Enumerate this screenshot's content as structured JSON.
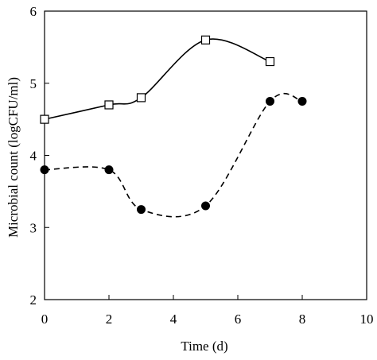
{
  "chart_data": {
    "type": "line",
    "xlabel": "Time (d)",
    "ylabel": "Microbial count (logCFU/ml)",
    "xlim": [
      0,
      10
    ],
    "ylim": [
      2,
      6
    ],
    "xticks": [
      0,
      2,
      4,
      6,
      8,
      10
    ],
    "yticks": [
      2,
      3,
      4,
      5,
      6
    ],
    "x_tick_labels": [
      "0",
      "2",
      "4",
      "6",
      "8",
      "10"
    ],
    "y_tick_labels": [
      "2",
      "3",
      "4",
      "5",
      "6"
    ],
    "grid": false,
    "series": [
      {
        "marker": "open-square",
        "line": "solid",
        "color": "#000000",
        "x": [
          0,
          2,
          3,
          5,
          7
        ],
        "y": [
          4.5,
          4.7,
          4.8,
          5.6,
          5.3
        ]
      },
      {
        "marker": "filled-circle",
        "line": "dashed",
        "color": "#000000",
        "x": [
          0,
          2,
          3,
          5,
          7,
          8
        ],
        "y": [
          3.8,
          3.8,
          3.25,
          3.3,
          4.75,
          4.75
        ]
      }
    ]
  }
}
